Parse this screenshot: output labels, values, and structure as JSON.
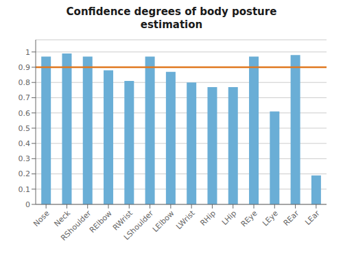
{
  "chart_data": {
    "type": "bar",
    "title": "Confidence degrees of body posture\nestimation",
    "categories": [
      "Nose",
      "Neck",
      "RShoulder",
      "RElbow",
      "RWrist",
      "LShoulder",
      "LElbow",
      "LWrist",
      "RHip",
      "LHip",
      "REye",
      "LEye",
      "REar",
      "LEar"
    ],
    "values": [
      0.97,
      0.99,
      0.97,
      0.88,
      0.81,
      0.97,
      0.87,
      0.8,
      0.77,
      0.77,
      0.97,
      0.61,
      0.98,
      0.19
    ],
    "color": "#6aaed6",
    "ylim": [
      0,
      1.08
    ],
    "yticks": [
      0,
      0.1,
      0.2,
      0.3,
      0.4,
      0.5,
      0.6,
      0.7,
      0.8,
      0.9,
      1
    ],
    "grid": true,
    "threshold": {
      "value": 0.9,
      "color": "#e07820"
    }
  }
}
